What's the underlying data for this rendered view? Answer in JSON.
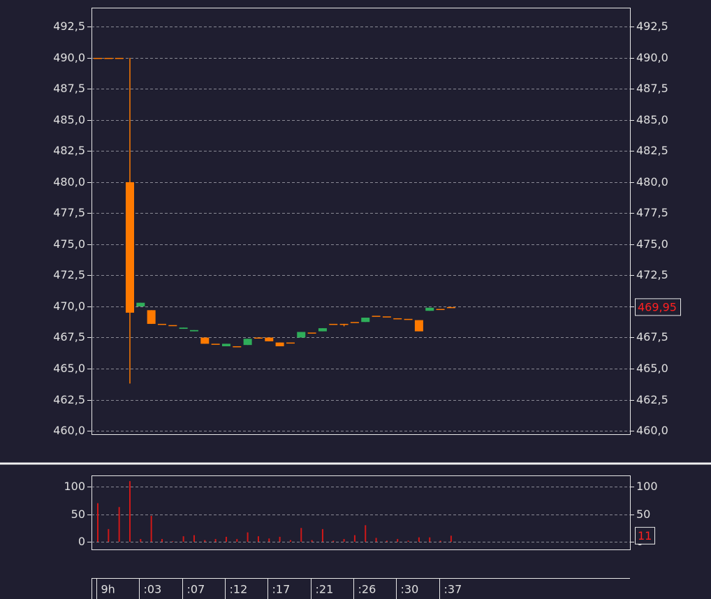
{
  "chart_data": [
    {
      "type": "candlestick",
      "categories": [
        "9h",
        null,
        null,
        null,
        ":03",
        null,
        null,
        null,
        ":07",
        null,
        null,
        null,
        ":12",
        null,
        null,
        null,
        ":17",
        null,
        null,
        null,
        ":21",
        null,
        null,
        null,
        ":26",
        null,
        null,
        null,
        ":30",
        null,
        null,
        null,
        ":37",
        null
      ],
      "open": [
        490,
        490,
        490,
        480,
        470.0,
        469.7,
        468.6,
        468.5,
        468.2,
        468.0,
        467.5,
        467.0,
        466.8,
        466.8,
        466.9,
        467.5,
        467.5,
        467.1,
        467.1,
        467.5,
        467.9,
        468.0,
        468.6,
        468.6,
        468.75,
        468.75,
        469.25,
        469.2,
        469.05,
        469.0,
        468.9,
        469.65,
        469.8,
        469.95
      ],
      "high": [
        490,
        490,
        490,
        490,
        470.3,
        469.7,
        468.6,
        468.5,
        468.3,
        468.1,
        467.5,
        467.0,
        467.0,
        466.8,
        467.4,
        467.5,
        467.5,
        467.1,
        467.1,
        467.95,
        467.9,
        468.25,
        468.6,
        468.6,
        468.75,
        469.1,
        469.25,
        469.2,
        469.05,
        469.0,
        468.9,
        469.9,
        469.8,
        469.95
      ],
      "low": [
        490,
        490,
        490,
        463.8,
        470.0,
        468.6,
        468.6,
        468.5,
        468.2,
        468.0,
        467.0,
        467.0,
        466.8,
        466.8,
        466.9,
        467.5,
        467.2,
        466.8,
        467.1,
        467.5,
        467.9,
        468.0,
        468.6,
        468.4,
        468.75,
        468.75,
        469.25,
        469.2,
        469.05,
        469.0,
        468.0,
        469.65,
        469.8,
        469.95
      ],
      "close": [
        490,
        490,
        490,
        469.5,
        470.3,
        468.6,
        468.6,
        468.5,
        468.3,
        468.1,
        467.0,
        467.0,
        467.0,
        466.8,
        467.4,
        467.5,
        467.2,
        466.8,
        467.1,
        467.95,
        467.9,
        468.25,
        468.6,
        468.6,
        468.75,
        469.1,
        469.25,
        469.2,
        469.05,
        469.0,
        468.0,
        469.9,
        469.8,
        469.95
      ],
      "up_color": "#2fae5a",
      "down_color": "#ff7a00",
      "ylim": [
        459.72,
        494.04
      ],
      "yticks": [
        {
          "value": 460,
          "label": "460,0"
        },
        {
          "value": 462.5,
          "label": "462,5"
        },
        {
          "value": 465,
          "label": "465,0"
        },
        {
          "value": 467.5,
          "label": "467,5"
        },
        {
          "value": 470,
          "label": "470,0"
        },
        {
          "value": 472.5,
          "label": "472,5"
        },
        {
          "value": 475,
          "label": "475,0"
        },
        {
          "value": 477.5,
          "label": "477,5"
        },
        {
          "value": 480,
          "label": "480,0"
        },
        {
          "value": 482.5,
          "label": "482,5"
        },
        {
          "value": 485,
          "label": "485,0"
        },
        {
          "value": 487.5,
          "label": "487,5"
        },
        {
          "value": 490,
          "label": "490,0"
        },
        {
          "value": 492.5,
          "label": "492,5"
        }
      ],
      "last_value": {
        "value": 469.95,
        "label": "469,95"
      },
      "grid": true
    },
    {
      "type": "bar",
      "values": [
        70,
        23,
        63,
        110,
        5,
        47,
        5,
        1,
        10,
        12,
        3,
        5,
        9,
        5,
        17,
        10,
        6,
        9,
        3,
        25,
        3,
        23,
        2,
        5,
        12,
        30,
        7,
        2,
        5,
        2,
        8,
        8,
        2,
        11
      ],
      "color": "#d01818",
      "ylim": [
        -13.9,
        120.3
      ],
      "yticks": [
        0,
        50,
        100
      ],
      "last_value": 11,
      "grid": true
    }
  ]
}
